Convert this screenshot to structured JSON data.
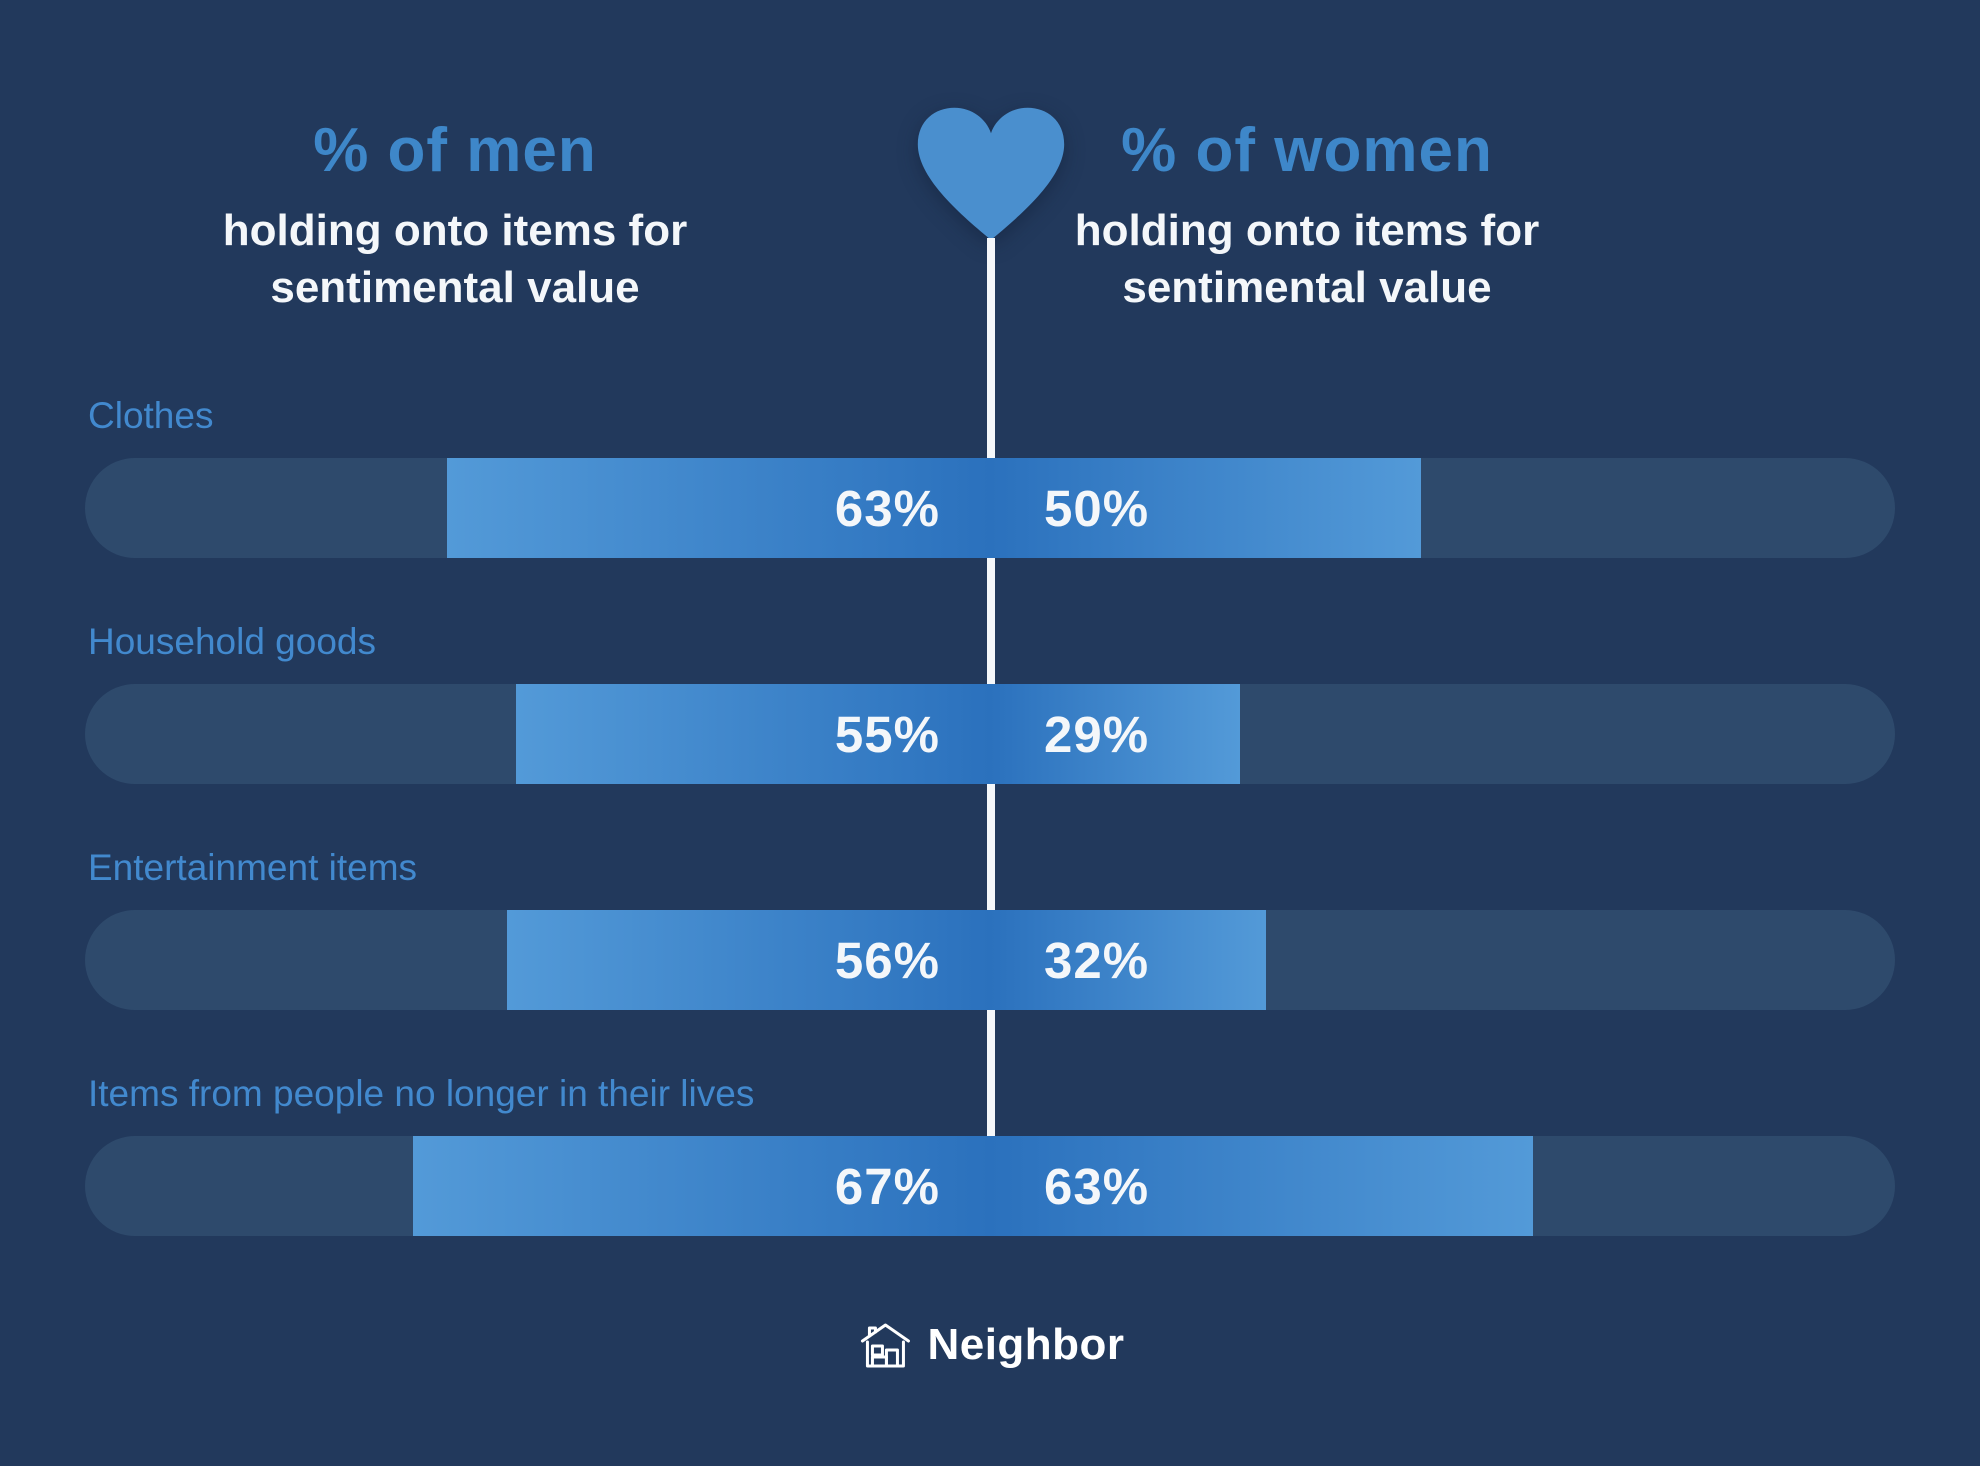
{
  "header": {
    "left": {
      "title": "% of men",
      "subtitle_lines": [
        "holding onto items for",
        "sentimental value"
      ]
    },
    "right": {
      "title": "% of women",
      "subtitle_lines": [
        "holding onto items for",
        "sentimental value"
      ]
    }
  },
  "chart_data": {
    "type": "bar",
    "variant": "diverging-horizontal",
    "categories": [
      "Clothes",
      "Household goods",
      "Entertainment items",
      "Items from people no longer in their lives"
    ],
    "series": [
      {
        "name": "% of men",
        "side": "left",
        "values": [
          63,
          55,
          56,
          67
        ]
      },
      {
        "name": "% of women",
        "side": "right",
        "values": [
          50,
          29,
          32,
          63
        ]
      }
    ],
    "value_suffix": "%",
    "axis_max_percent_per_side": 105,
    "legend_position": "top",
    "grid": false
  },
  "footer": {
    "brand": "Neighbor"
  },
  "colors": {
    "background": "#22395c",
    "track": "#2e4a6c",
    "fill_light": "#539ad8",
    "fill_dark": "#2b71bd",
    "title_blue": "#3e87c9",
    "category_label": "#4289ce",
    "text_white": "#f4f7fa",
    "heart": "#4a8fce",
    "line": "#f5f7fa"
  }
}
